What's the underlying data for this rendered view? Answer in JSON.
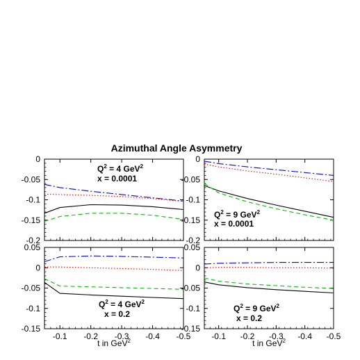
{
  "chart_data": {
    "type": "line",
    "title": "Azimuthal Angle Asymmetry",
    "xlabel": "t in GeV",
    "xlabel_sup": "2",
    "xlim": [
      -0.05,
      -0.5
    ],
    "x_ticks": [
      "-0.1",
      "-0.2",
      "-0.3",
      "-0.4",
      "-0.5"
    ],
    "x_tick_values": [
      -0.1,
      -0.2,
      -0.3,
      -0.4,
      -0.5
    ],
    "series_styles": [
      {
        "color": "#0000ff",
        "dash": "10,3,2,3"
      },
      {
        "color": "#ff0000",
        "dash": "1.5,2.5"
      },
      {
        "color": "#000000",
        "dash": ""
      },
      {
        "color": "#00c000",
        "dash": "6,4"
      }
    ],
    "panels": [
      {
        "id": "top-left",
        "annotation": {
          "q2_prefix": "Q",
          "q2_sup": "2",
          "q2_mid": " = 4 GeV",
          "q2_unit_sup": "2",
          "x_text": "x = 0.0001"
        },
        "ylim": [
          -0.2,
          0
        ],
        "y_ticks": [
          "0",
          "-0.05",
          "-0.1",
          "-0.15",
          "-0.2"
        ],
        "y_tick_values": [
          0,
          -0.05,
          -0.1,
          -0.15,
          -0.2
        ],
        "series": [
          {
            "x": [
              -0.05,
              -0.1,
              -0.2,
              -0.3,
              -0.4,
              -0.5
            ],
            "values": [
              -0.062,
              -0.07,
              -0.079,
              -0.087,
              -0.095,
              -0.103
            ]
          },
          {
            "x": [
              -0.05,
              -0.1,
              -0.2,
              -0.3,
              -0.4,
              -0.5
            ],
            "values": [
              -0.086,
              -0.087,
              -0.089,
              -0.092,
              -0.097,
              -0.104
            ]
          },
          {
            "x": [
              -0.05,
              -0.1,
              -0.2,
              -0.3,
              -0.4,
              -0.5
            ],
            "values": [
              -0.133,
              -0.119,
              -0.112,
              -0.113,
              -0.117,
              -0.124
            ]
          },
          {
            "x": [
              -0.05,
              -0.1,
              -0.2,
              -0.3,
              -0.4,
              -0.5
            ],
            "values": [
              -0.153,
              -0.141,
              -0.133,
              -0.133,
              -0.138,
              -0.148
            ]
          }
        ]
      },
      {
        "id": "top-right",
        "annotation": {
          "q2_prefix": "Q",
          "q2_sup": "2",
          "q2_mid": " = 9 GeV",
          "q2_unit_sup": "2",
          "x_text": "x = 0.0001"
        },
        "ylim": [
          -0.2,
          0
        ],
        "y_ticks": [
          "0",
          "-0.05",
          "-0.1",
          "-0.15",
          "-0.2"
        ],
        "y_tick_values": [
          0,
          -0.05,
          -0.1,
          -0.15,
          -0.2
        ],
        "series": [
          {
            "x": [
              -0.05,
              -0.1,
              -0.2,
              -0.3,
              -0.4,
              -0.5
            ],
            "values": [
              -0.005,
              -0.011,
              -0.019,
              -0.026,
              -0.033,
              -0.04
            ]
          },
          {
            "x": [
              -0.05,
              -0.1,
              -0.2,
              -0.3,
              -0.4,
              -0.5
            ],
            "values": [
              -0.012,
              -0.019,
              -0.029,
              -0.037,
              -0.046,
              -0.055
            ]
          },
          {
            "x": [
              -0.05,
              -0.1,
              -0.2,
              -0.3,
              -0.4,
              -0.5
            ],
            "values": [
              -0.065,
              -0.078,
              -0.097,
              -0.113,
              -0.128,
              -0.143
            ]
          },
          {
            "x": [
              -0.05,
              -0.1,
              -0.2,
              -0.3,
              -0.4,
              -0.5
            ],
            "values": [
              -0.06,
              -0.083,
              -0.105,
              -0.122,
              -0.137,
              -0.15
            ]
          }
        ]
      },
      {
        "id": "bottom-left",
        "annotation": {
          "q2_prefix": "Q",
          "q2_sup": "2",
          "q2_mid": " = 4 GeV",
          "q2_unit_sup": "2",
          "x_text": "x = 0.2"
        },
        "ylim": [
          -0.15,
          0.05
        ],
        "y_ticks": [
          "0.05",
          "0",
          "-0.05",
          "-0.1",
          "-0.15"
        ],
        "y_tick_values": [
          0.05,
          0,
          -0.05,
          -0.1,
          -0.15
        ],
        "series": [
          {
            "x": [
              -0.05,
              -0.1,
              -0.2,
              -0.3,
              -0.4,
              -0.5
            ],
            "values": [
              0.015,
              0.027,
              0.029,
              0.028,
              0.026,
              0.024
            ]
          },
          {
            "x": [
              -0.05,
              -0.1,
              -0.2,
              -0.3,
              -0.4,
              -0.5
            ],
            "values": [
              0.002,
              0.002,
              0.0,
              -0.002,
              -0.004,
              -0.007
            ]
          },
          {
            "x": [
              -0.05,
              -0.1,
              -0.2,
              -0.3,
              -0.4,
              -0.5
            ],
            "values": [
              -0.036,
              -0.063,
              -0.067,
              -0.07,
              -0.073,
              -0.076
            ]
          },
          {
            "x": [
              -0.05,
              -0.1,
              -0.2,
              -0.3,
              -0.4,
              -0.5
            ],
            "values": [
              -0.027,
              -0.045,
              -0.047,
              -0.049,
              -0.051,
              -0.053
            ]
          }
        ]
      },
      {
        "id": "bottom-right",
        "annotation": {
          "q2_prefix": "Q",
          "q2_sup": "2",
          "q2_mid": " = 9 GeV",
          "q2_unit_sup": "2",
          "x_text": "x = 0.2"
        },
        "ylim": [
          -0.15,
          0.05
        ],
        "y_ticks": [
          "0.05",
          "0",
          "-0.05",
          "-0.1",
          "-0.15"
        ],
        "y_tick_values": [
          0.05,
          0,
          -0.05,
          -0.1,
          -0.15
        ],
        "series": [
          {
            "x": [
              -0.05,
              -0.1,
              -0.2,
              -0.3,
              -0.4,
              -0.5
            ],
            "values": [
              0.009,
              0.011,
              0.012,
              0.013,
              0.013,
              0.013
            ]
          },
          {
            "x": [
              -0.05,
              -0.1,
              -0.2,
              -0.3,
              -0.4,
              -0.5
            ],
            "values": [
              0.0,
              0.001,
              0.001,
              0.0,
              0.0,
              -0.001
            ]
          },
          {
            "x": [
              -0.05,
              -0.1,
              -0.2,
              -0.3,
              -0.4,
              -0.5
            ],
            "values": [
              -0.035,
              -0.042,
              -0.049,
              -0.054,
              -0.058,
              -0.062
            ]
          },
          {
            "x": [
              -0.05,
              -0.1,
              -0.2,
              -0.3,
              -0.4,
              -0.5
            ],
            "values": [
              -0.025,
              -0.033,
              -0.04,
              -0.044,
              -0.048,
              -0.051
            ]
          }
        ]
      }
    ]
  }
}
